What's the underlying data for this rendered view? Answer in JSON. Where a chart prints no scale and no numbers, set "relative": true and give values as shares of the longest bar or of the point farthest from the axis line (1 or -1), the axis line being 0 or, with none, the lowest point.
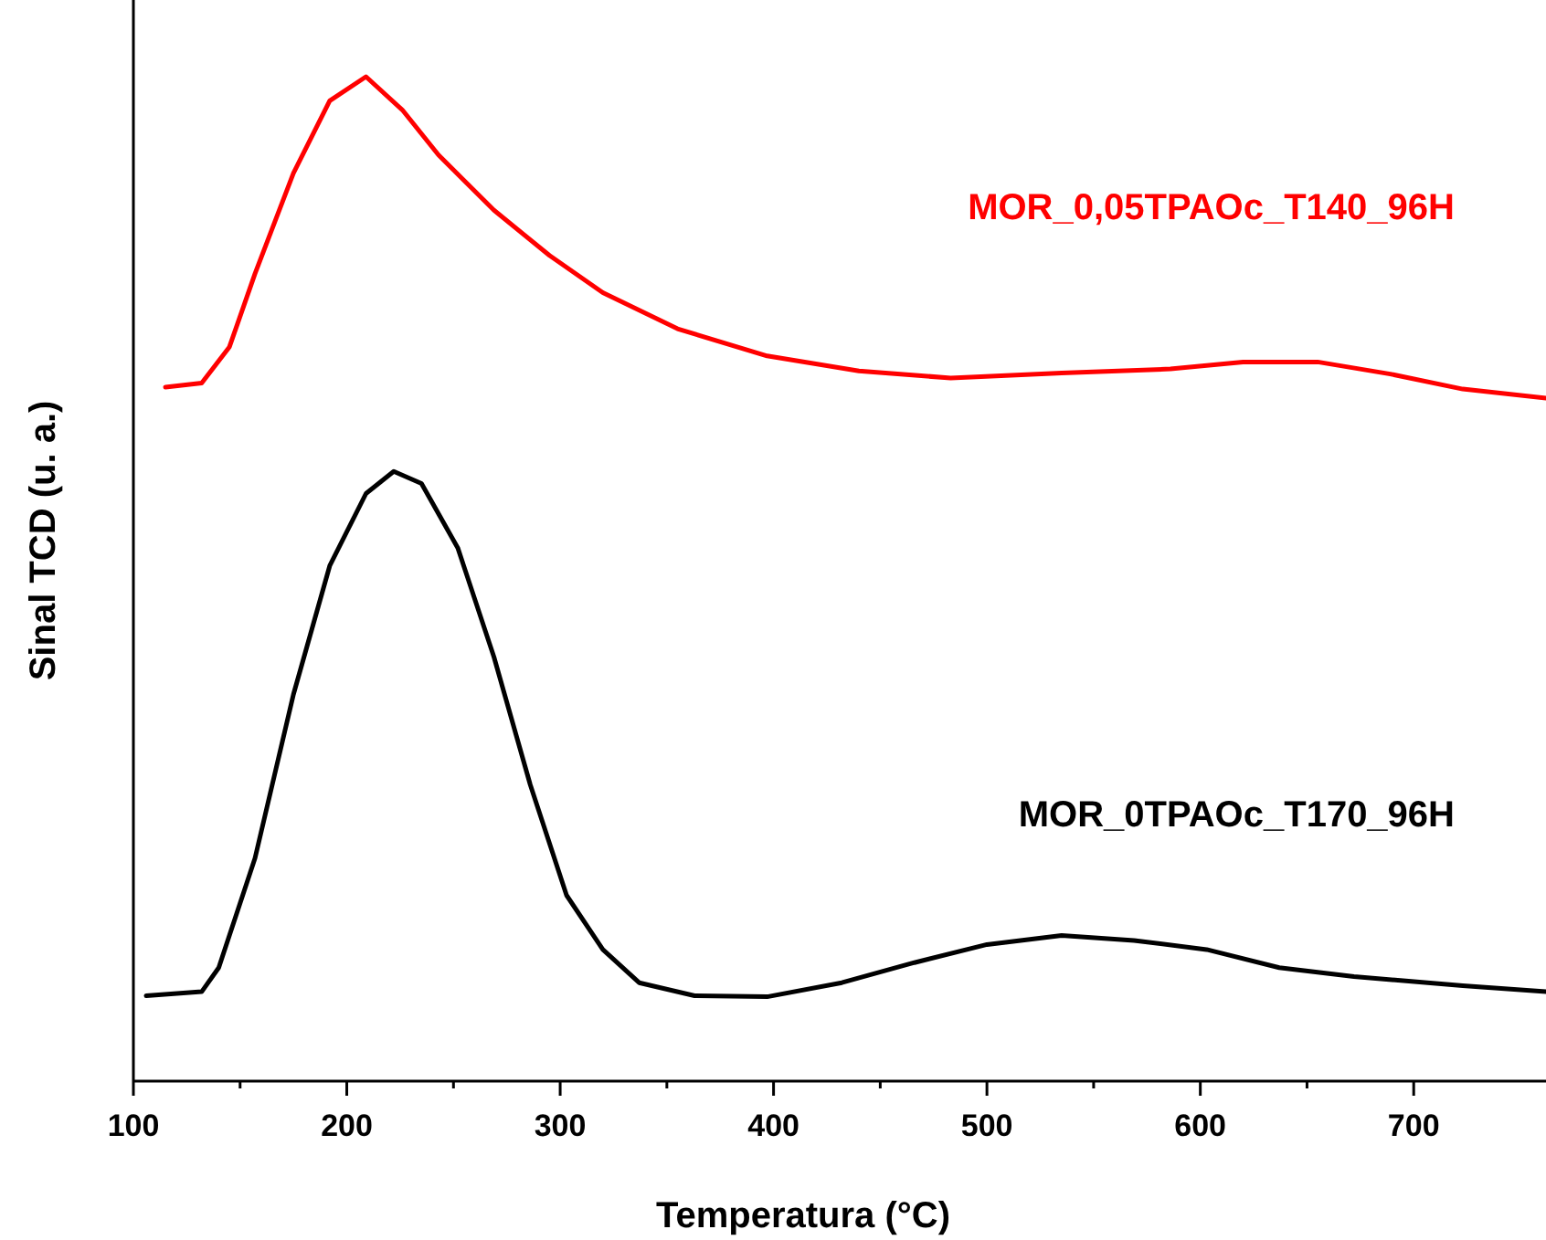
{
  "chart_data": {
    "type": "line",
    "relative": true,
    "xlabel": "Temperatura (°C)",
    "ylabel": "Sinal TCD (u. a.)",
    "xlim": [
      100,
      762
    ],
    "xticks": [
      100,
      200,
      300,
      400,
      500,
      600,
      700
    ],
    "marker": "none",
    "line_style": "solid",
    "series": [
      {
        "name": "MOR_0,05TPAOc_T140_96H",
        "color": "#ff0000",
        "x": [
          115,
          132,
          145,
          157,
          175,
          192,
          209,
          226,
          243,
          269,
          295,
          320,
          355,
          397,
          440,
          483,
          535,
          586,
          620,
          655,
          689,
          723,
          762
        ],
        "values": [
          0.691,
          0.695,
          0.731,
          0.804,
          0.904,
          0.976,
          1.0,
          0.967,
          0.922,
          0.867,
          0.822,
          0.785,
          0.749,
          0.722,
          0.707,
          0.7,
          0.705,
          0.709,
          0.716,
          0.716,
          0.704,
          0.689,
          0.68
        ]
      },
      {
        "name": "MOR_0TPAOc_T170_96H",
        "color": "#000000",
        "x": [
          106,
          132,
          140,
          157,
          175,
          192,
          209,
          222,
          235,
          252,
          269,
          286,
          303,
          320,
          337,
          363,
          397,
          432,
          466,
          500,
          535,
          569,
          603,
          637,
          672,
          723,
          762
        ],
        "values": [
          0.085,
          0.089,
          0.113,
          0.222,
          0.385,
          0.513,
          0.585,
          0.607,
          0.595,
          0.531,
          0.422,
          0.295,
          0.185,
          0.131,
          0.098,
          0.085,
          0.084,
          0.098,
          0.118,
          0.136,
          0.145,
          0.14,
          0.131,
          0.113,
          0.104,
          0.095,
          0.089
        ]
      }
    ]
  }
}
